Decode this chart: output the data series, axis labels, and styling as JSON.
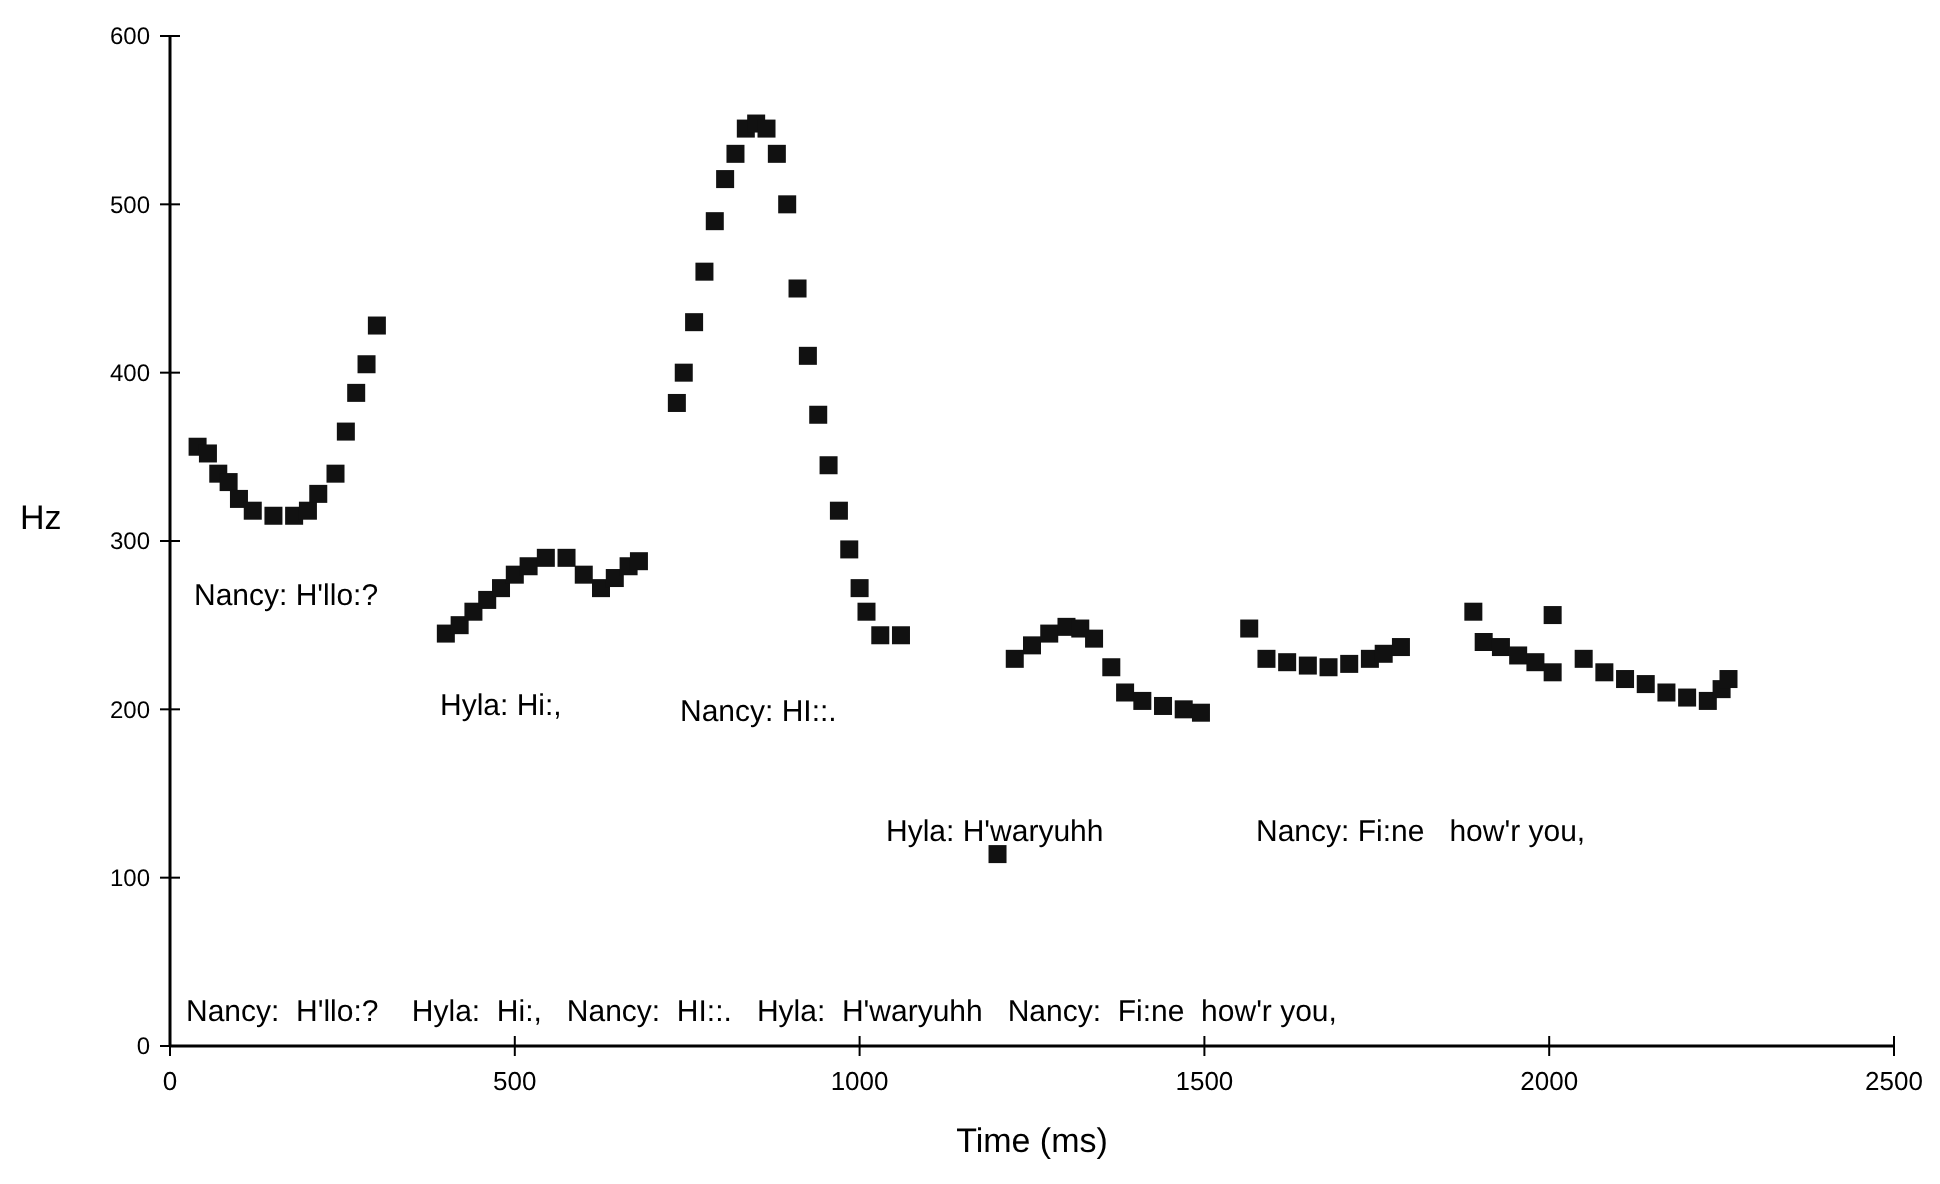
{
  "chart_data": {
    "type": "scatter",
    "xlabel": "Time (ms)",
    "ylabel": "Hz",
    "marker": "square",
    "grid": false,
    "xlim": [
      0,
      2500
    ],
    "xticks": [
      0,
      500,
      1000,
      1500,
      2000,
      2500
    ],
    "ylim": [
      0,
      600
    ],
    "yticks": [
      0,
      100,
      200,
      300,
      400,
      500,
      600
    ],
    "series": [
      {
        "color": "#111111",
        "x": [
          40,
          55,
          70,
          85,
          100,
          120,
          150,
          180,
          200,
          215,
          240,
          255,
          270,
          285,
          300,
          400,
          420,
          440,
          460,
          480,
          500,
          520,
          545,
          575,
          600,
          625,
          645,
          665,
          680,
          735,
          745,
          760,
          775,
          790,
          805,
          820,
          835,
          850,
          865,
          880,
          895,
          910,
          925,
          940,
          955,
          970,
          985,
          1000,
          1010,
          1030,
          1060,
          1200,
          1225,
          1250,
          1275,
          1300,
          1320,
          1340,
          1365,
          1385,
          1410,
          1440,
          1470,
          1495,
          1565,
          1590,
          1620,
          1650,
          1680,
          1710,
          1740,
          1760,
          1785,
          1890,
          2005,
          1905,
          1930,
          1955,
          1980,
          2005,
          2050,
          2080,
          2110,
          2140,
          2170,
          2200,
          2230,
          2250,
          2260
        ],
        "values": [
          356,
          352,
          340,
          335,
          325,
          318,
          315,
          315,
          318,
          328,
          340,
          365,
          388,
          405,
          428,
          245,
          250,
          258,
          265,
          272,
          280,
          285,
          290,
          290,
          280,
          272,
          278,
          285,
          288,
          382,
          400,
          430,
          460,
          490,
          515,
          530,
          545,
          548,
          545,
          530,
          500,
          450,
          410,
          375,
          345,
          318,
          295,
          272,
          258,
          244,
          244,
          114,
          230,
          238,
          245,
          249,
          248,
          242,
          225,
          210,
          205,
          202,
          200,
          198,
          248,
          230,
          228,
          226,
          225,
          227,
          230,
          233,
          237,
          258,
          256,
          240,
          237,
          232,
          228,
          222,
          230,
          222,
          218,
          215,
          210,
          207,
          205,
          212,
          218
        ]
      }
    ],
    "annotations": [
      "Nancy: H'llo:?",
      "Hyla: Hi:,",
      "Nancy: HI::.",
      "Hyla: H'waryuhh",
      "Nancy: Fi:ne   how'r you,",
      "Nancy:  H'llo:?    Hyla:  Hi:,   Nancy:  HI::.   Hyla:  H'waryuhh   Nancy:  Fi:ne  how'r you,"
    ]
  }
}
